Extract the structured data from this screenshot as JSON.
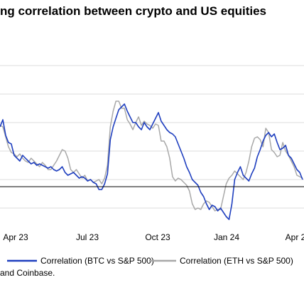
{
  "title_fragment": "ng correlation between crypto and US equities",
  "source_fragment": "and Coinbase.",
  "chart_data": {
    "type": "line",
    "title": "ng correlation between crypto and US equities",
    "x_tick_labels": [
      "Apr 23",
      "Jul 23",
      "Oct 23",
      "Jan 24",
      "Apr 2"
    ],
    "zero_line": true,
    "legend_position": "bottom",
    "colors": {
      "btc": "#1f3fbf",
      "eth": "#a8a8a8",
      "axis": "#000000",
      "grid": "#dcdcdc"
    },
    "series": [
      {
        "name": "Correlation (BTC vs S&P 500)",
        "key": "btc",
        "values": [
          0.42,
          0.47,
          0.36,
          0.31,
          0.3,
          0.22,
          0.2,
          0.18,
          0.22,
          0.2,
          0.18,
          0.16,
          0.17,
          0.15,
          0.16,
          0.15,
          0.14,
          0.13,
          0.14,
          0.12,
          0.11,
          0.12,
          0.14,
          0.1,
          0.08,
          0.09,
          0.1,
          0.08,
          0.06,
          0.07,
          0.06,
          0.04,
          0.05,
          0.03,
          0.02,
          -0.02,
          -0.02,
          0.02,
          0.09,
          0.33,
          0.42,
          0.48,
          0.54,
          0.56,
          0.58,
          0.53,
          0.49,
          0.45,
          0.45,
          0.42,
          0.4,
          0.45,
          0.42,
          0.4,
          0.44,
          0.48,
          0.52,
          0.46,
          0.43,
          0.4,
          0.38,
          0.37,
          0.35,
          0.3,
          0.25,
          0.2,
          0.14,
          0.1,
          0.05,
          0.03,
          0.01,
          -0.04,
          -0.07,
          -0.12,
          -0.16,
          -0.13,
          -0.14,
          -0.17,
          -0.15,
          -0.18,
          -0.21,
          -0.23,
          -0.12,
          0.05,
          0.1,
          0.14,
          0.08,
          0.06,
          0.04,
          0.09,
          0.13,
          0.21,
          0.26,
          0.32,
          0.36,
          0.38,
          0.35,
          0.37,
          0.31,
          0.26,
          0.27,
          0.29,
          0.22,
          0.2,
          0.16,
          0.12,
          0.1,
          0.05
        ]
      },
      {
        "name": "Correlation (ETH vs S&P 500)",
        "key": "eth",
        "values": [
          0.43,
          0.42,
          0.35,
          0.28,
          0.24,
          0.23,
          0.21,
          0.23,
          0.2,
          0.18,
          0.17,
          0.2,
          0.18,
          0.16,
          0.14,
          0.17,
          0.15,
          0.12,
          0.12,
          0.15,
          0.18,
          0.22,
          0.26,
          0.25,
          0.2,
          0.12,
          0.1,
          0.12,
          0.09,
          0.06,
          0.08,
          0.04,
          0.05,
          0.03,
          0.04,
          0.05,
          0.02,
          0.06,
          0.15,
          0.42,
          0.53,
          0.6,
          0.6,
          0.55,
          0.55,
          0.47,
          0.44,
          0.4,
          0.45,
          0.49,
          0.43,
          0.46,
          0.44,
          0.43,
          0.41,
          0.44,
          0.43,
          0.32,
          0.32,
          0.28,
          0.2,
          0.07,
          0.04,
          0.06,
          0.05,
          0.03,
          0.01,
          -0.03,
          -0.12,
          -0.16,
          -0.15,
          -0.16,
          -0.12,
          -0.1,
          -0.11,
          -0.14,
          -0.17,
          -0.16,
          -0.16,
          -0.07,
          0.02,
          0.06,
          0.08,
          0.11,
          0.09,
          0.07,
          0.05,
          0.1,
          0.18,
          0.28,
          0.34,
          0.35,
          0.33,
          0.28,
          0.41,
          0.38,
          0.26,
          0.24,
          0.21,
          0.22,
          0.31,
          0.25,
          0.22,
          0.18,
          0.14,
          0.08,
          0.07,
          0.06
        ]
      }
    ]
  }
}
